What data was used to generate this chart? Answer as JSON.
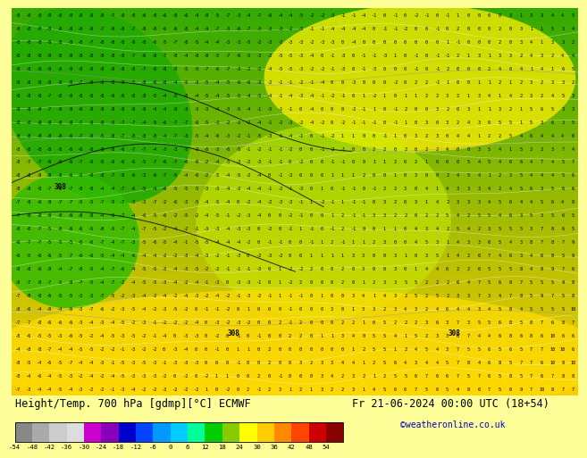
{
  "title_left": "Height/Temp. 700 hPa [gdmp][°C] ECMWF",
  "title_right": "Fr 21-06-2024 00:00 UTC (18+54)",
  "credit": "©weatheronline.co.uk",
  "colorbar_ticks": [
    -54,
    -48,
    -42,
    -36,
    -30,
    -24,
    -18,
    -12,
    -6,
    0,
    6,
    12,
    18,
    24,
    30,
    36,
    42,
    48,
    54
  ],
  "colorbar_colors": [
    "#888888",
    "#aaaaaa",
    "#cccccc",
    "#dddddd",
    "#cc00cc",
    "#8800bb",
    "#0000cc",
    "#0044ff",
    "#0099ff",
    "#00ccff",
    "#00ff99",
    "#00cc00",
    "#88cc00",
    "#ffff00",
    "#ffcc00",
    "#ff8800",
    "#ff4400",
    "#cc0000",
    "#880000"
  ],
  "bg_color": "#ffff99",
  "map_bg_top": "#33aa00",
  "map_bg_bottom": "#ffcc00",
  "label_color": "#000000",
  "label_fontsize": 9,
  "title_fontsize": 9,
  "credit_color": "#0000cc"
}
